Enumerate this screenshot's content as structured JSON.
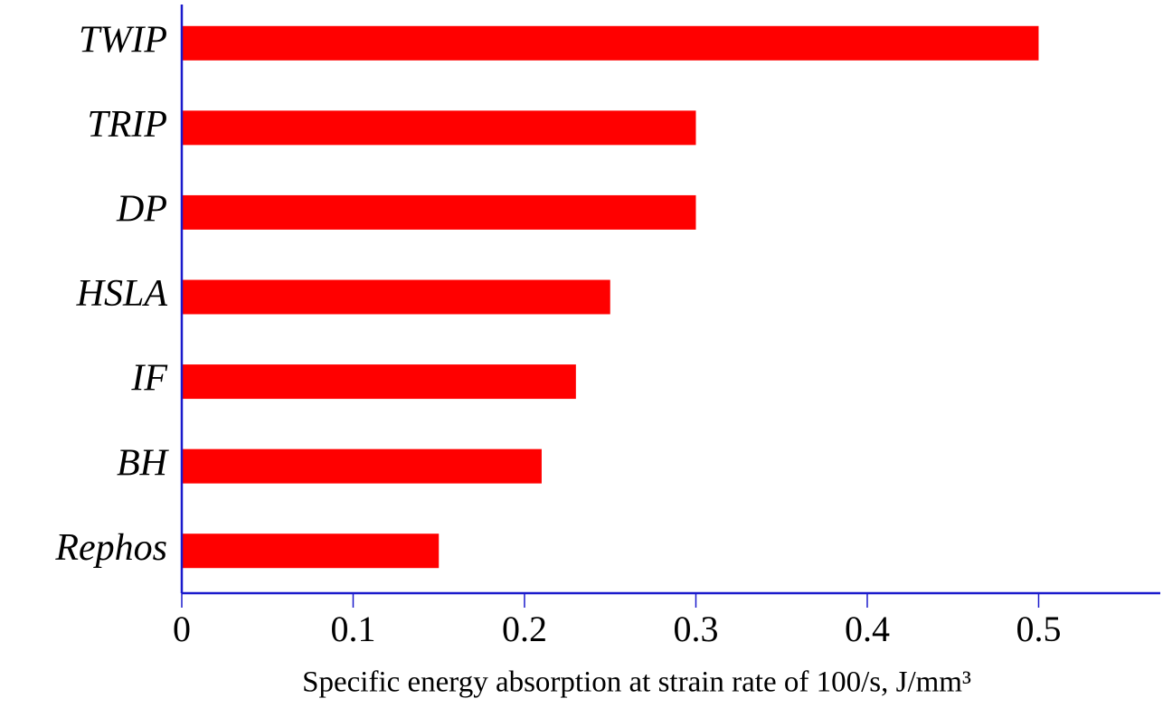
{
  "chart_data": {
    "type": "bar",
    "orientation": "horizontal",
    "categories": [
      "TWIP",
      "TRIP",
      "DP",
      "HSLA",
      "IF",
      "BH",
      "Rephos"
    ],
    "values": [
      0.5,
      0.3,
      0.3,
      0.25,
      0.23,
      0.21,
      0.15
    ],
    "color": "#ff0000",
    "axis_color": "#1a1acc",
    "xlabel": "Specific energy absorption at strain rate of 100/s, J/mm³",
    "xlim": [
      0,
      0.571
    ],
    "xticks": [
      0,
      0.1,
      0.2,
      0.3,
      0.4,
      0.5
    ],
    "grid": false
  }
}
